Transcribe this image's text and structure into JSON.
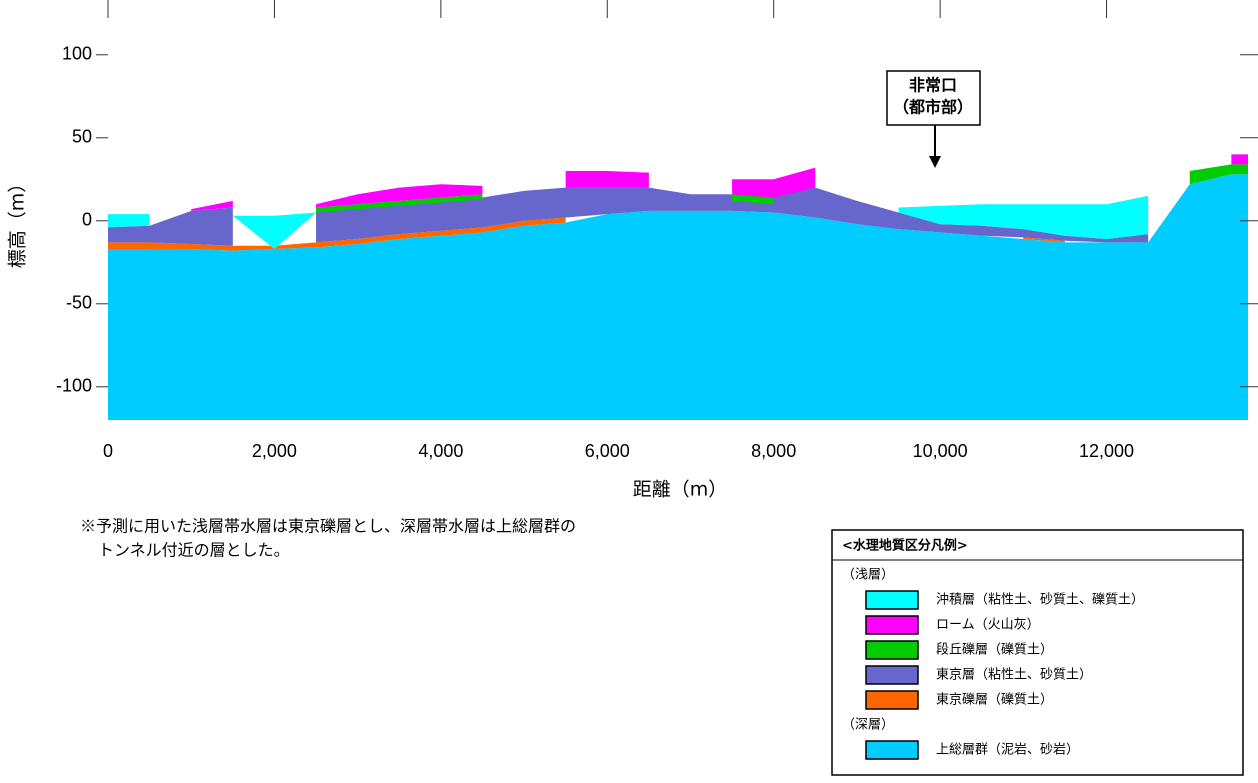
{
  "chart_data": {
    "type": "profile",
    "xlabel": "距離（m）",
    "ylabel": "標高（m）",
    "x": [
      0,
      500,
      1000,
      1500,
      2000,
      2500,
      3000,
      3500,
      4000,
      4500,
      5000,
      5500,
      6000,
      6500,
      7000,
      7500,
      8000,
      8500,
      9000,
      9500,
      10000,
      10500,
      11000,
      11500,
      12000,
      12500,
      13000,
      13500,
      13700
    ],
    "xlim": [
      0,
      13700
    ],
    "xticks": [
      0,
      {
        "value": 2000,
        "label": "2,000"
      },
      {
        "value": 4000,
        "label": "4,000"
      },
      {
        "value": 6000,
        "label": "6,000"
      },
      {
        "value": 8000,
        "label": "8,000"
      },
      {
        "value": 10000,
        "label": "10,000"
      },
      {
        "value": 12000,
        "label": "12,000"
      }
    ],
    "ylim": [
      -120,
      133
    ],
    "yticks": [
      -100,
      -50,
      0,
      50,
      100
    ],
    "legend_title": "<水理地質区分凡例>",
    "legend_groups": [
      "（浅層）",
      "（深層）"
    ],
    "series": [
      {
        "name": "沖積層（粘性土、砂質土、礫質土）",
        "color": "#00ffff",
        "top": [
          4,
          4,
          null,
          3,
          3,
          5,
          null,
          null,
          null,
          null,
          null,
          null,
          null,
          null,
          null,
          null,
          null,
          null,
          null,
          8,
          9,
          10,
          10,
          10,
          10,
          15,
          null,
          null,
          null
        ],
        "bottom": [
          -4,
          -3,
          null,
          3,
          -17,
          5,
          null,
          null,
          null,
          null,
          null,
          null,
          null,
          null,
          null,
          null,
          null,
          null,
          null,
          5,
          -2,
          -3,
          -5,
          -9,
          -11,
          -8,
          null,
          null,
          null
        ]
      },
      {
        "name": "ローム（火山灰）",
        "color": "#ff00ff",
        "top": [
          null,
          null,
          7,
          12,
          null,
          10,
          16,
          20,
          22,
          21,
          null,
          30,
          30,
          29,
          null,
          25,
          25,
          32,
          null,
          null,
          null,
          null,
          null,
          null,
          null,
          null,
          null,
          40,
          40
        ],
        "bottom": [
          null,
          null,
          6,
          8,
          null,
          8,
          10,
          12,
          14,
          16,
          null,
          20,
          20,
          20,
          null,
          16,
          14,
          20,
          null,
          null,
          null,
          null,
          null,
          null,
          null,
          null,
          null,
          34,
          34
        ]
      },
      {
        "name": "段丘礫層（礫質土）",
        "color": "#00cc00",
        "top": [
          null,
          null,
          null,
          null,
          null,
          8,
          10,
          12,
          14,
          16,
          null,
          null,
          null,
          null,
          null,
          16,
          14,
          null,
          null,
          null,
          null,
          null,
          null,
          null,
          null,
          null,
          30,
          34,
          34
        ],
        "bottom": [
          null,
          null,
          null,
          null,
          null,
          5,
          7,
          9,
          11,
          13,
          null,
          null,
          null,
          null,
          null,
          12,
          10,
          null,
          null,
          null,
          null,
          null,
          null,
          null,
          null,
          null,
          22,
          28,
          28
        ]
      },
      {
        "name": "東京層（粘性土、砂質土）",
        "color": "#6666cc",
        "top": [
          -4,
          -3,
          6,
          8,
          null,
          5,
          8,
          10,
          12,
          14,
          18,
          20,
          20,
          20,
          16,
          16,
          18,
          20,
          12,
          5,
          -2,
          -3,
          -5,
          -9,
          -11,
          -8,
          null,
          null,
          null
        ],
        "bottom": [
          -13,
          -13,
          -14,
          -15,
          null,
          -13,
          -11,
          -8,
          -6,
          -4,
          0,
          2,
          4,
          6,
          6,
          6,
          5,
          2,
          -2,
          -5,
          -7,
          -9,
          -10,
          -12,
          -13,
          -13,
          null,
          null,
          null
        ]
      },
      {
        "name": "東京礫層（礫質土）",
        "color": "#ff6600",
        "top": [
          -13,
          -13,
          -14,
          -15,
          -15,
          -13,
          -11,
          -8,
          -6,
          -4,
          0,
          2,
          null,
          null,
          null,
          null,
          null,
          null,
          null,
          null,
          null,
          null,
          -10,
          -12,
          null,
          null,
          null,
          null,
          null
        ],
        "bottom": [
          -17,
          -17,
          -17,
          -18,
          -17,
          -16,
          -14,
          -11,
          -9,
          -7,
          -3,
          -1,
          null,
          null,
          null,
          null,
          null,
          null,
          null,
          null,
          null,
          null,
          -11,
          -13,
          null,
          null,
          null,
          null,
          null
        ]
      },
      {
        "name": "上総層群（泥岩、砂岩）",
        "color": "#00ccff",
        "top": [
          -17,
          -17,
          -17,
          -18,
          -17,
          -16,
          -14,
          -11,
          -9,
          -7,
          -3,
          -1,
          4,
          6,
          6,
          6,
          5,
          2,
          -2,
          -5,
          -7,
          -9,
          -11,
          -13,
          -13,
          -13,
          22,
          28,
          28
        ],
        "bottom": [
          -120,
          -120,
          -120,
          -120,
          -120,
          -120,
          -120,
          -120,
          -120,
          -120,
          -120,
          -120,
          -120,
          -120,
          -120,
          -120,
          -120,
          -120,
          -120,
          -120,
          -120,
          -120,
          -120,
          -120,
          -120,
          -120,
          -120,
          -120,
          -120
        ]
      }
    ],
    "annotation": [
      "非常口",
      "（都市部）"
    ],
    "notes": [
      "※予測に用いた浅層帯水層は東京礫層とし、深層帯水層は上総層群の",
      "トンネル付近の層とした。"
    ]
  }
}
